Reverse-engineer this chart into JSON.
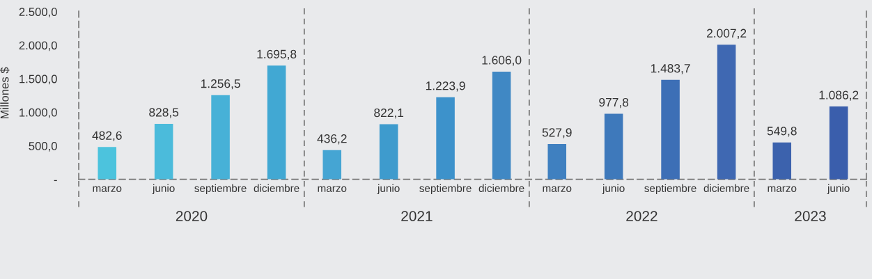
{
  "chart_data": {
    "type": "bar",
    "ylabel": "Millones $",
    "x": [
      "2020-03",
      "2020-06",
      "2020-09",
      "2020-12",
      "2021-03",
      "2021-06",
      "2021-09",
      "2021-12",
      "2022-03",
      "2022-06",
      "2022-09",
      "2022-12",
      "2023-03",
      "2023-06"
    ],
    "values": [
      482.6,
      828.5,
      1256.5,
      1695.8,
      436.2,
      822.1,
      1223.9,
      1606.0,
      527.9,
      977.8,
      1483.7,
      2007.2,
      549.8,
      1086.2
    ],
    "value_labels": [
      "482,6",
      "828,5",
      "1.256,5",
      "1.695,8",
      "436,2",
      "822,1",
      "1.223,9",
      "1.606,0",
      "527,9",
      "977,8",
      "1.483,7",
      "2.007,2",
      "549,8",
      "1.086,2"
    ],
    "colors": [
      "#4cc3dd",
      "#4bbbdb",
      "#47b1d7",
      "#41a8d3",
      "#45a5d3",
      "#3e9bcd",
      "#3d92cb",
      "#4088c4",
      "#3f80c0",
      "#3e79bb",
      "#3d6fb6",
      "#3f68b2",
      "#3c62ad",
      "#3a5eac"
    ],
    "xlim": [
      "2020-01-15",
      "2023-07-16"
    ],
    "xticks": [
      {
        "value": "2020-03",
        "label": "marzo"
      },
      {
        "value": "2020-06",
        "label": "junio"
      },
      {
        "value": "2020-09",
        "label": "septiembre"
      },
      {
        "value": "2020-12",
        "label": "diciembre"
      },
      {
        "value": "2021-03",
        "label": "marzo"
      },
      {
        "value": "2021-06",
        "label": "junio"
      },
      {
        "value": "2021-09",
        "label": "septiembre"
      },
      {
        "value": "2021-12",
        "label": "diciembre"
      },
      {
        "value": "2022-03",
        "label": "marzo"
      },
      {
        "value": "2022-06",
        "label": "junio"
      },
      {
        "value": "2022-09",
        "label": "septiembre"
      },
      {
        "value": "2022-12",
        "label": "diciembre"
      },
      {
        "value": "2023-03",
        "label": "marzo"
      },
      {
        "value": "2023-06",
        "label": "junio"
      }
    ],
    "ylim": [
      0,
      2570
    ],
    "yticks": [
      {
        "value": 0,
        "label": "-"
      },
      {
        "value": 500,
        "label": "500,0"
      },
      {
        "value": 1000,
        "label": "1.000,0"
      },
      {
        "value": 1500,
        "label": "1.500,0"
      },
      {
        "value": 2000,
        "label": "2.000,0"
      },
      {
        "value": 2500,
        "label": "2.500,0"
      }
    ],
    "ref_lines": [
      {
        "axis": "x",
        "value": "2021-01-15",
        "color": "#8c8c8c",
        "line_style": "dashed"
      },
      {
        "axis": "x",
        "value": "2022-01-15",
        "color": "#8c8c8c",
        "line_style": "dashed"
      },
      {
        "axis": "x",
        "value": "2023-01-15",
        "color": "#8c8c8c",
        "line_style": "dashed"
      }
    ],
    "annotations": [
      "2020",
      "2021",
      "2022",
      "2023"
    ],
    "grid": false,
    "legend": false
  }
}
